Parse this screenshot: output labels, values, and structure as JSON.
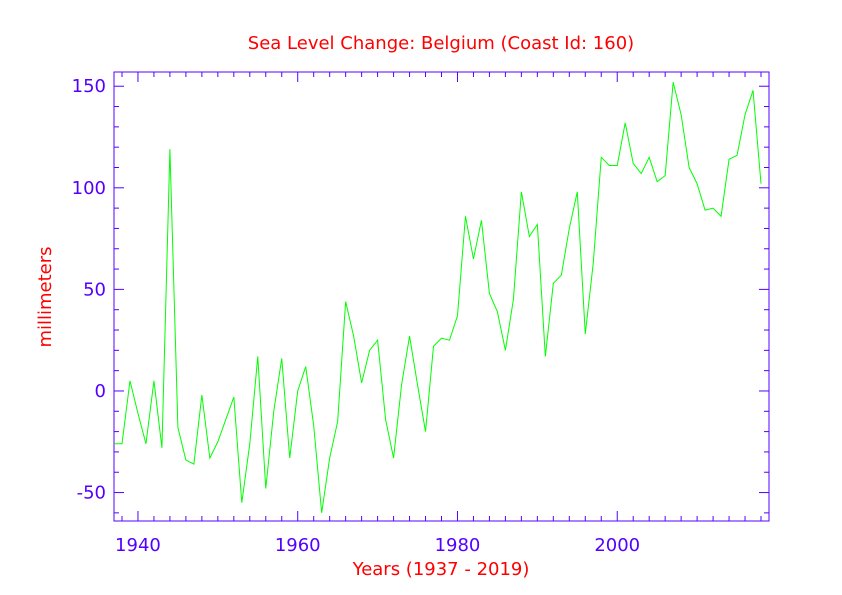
{
  "colors": {
    "title": "#ff0000",
    "axis": "#5500ff",
    "series": "#00ff00",
    "background": "#ffffff"
  },
  "chart_data": {
    "type": "line",
    "title": "Sea Level Change: Belgium (Coast Id: 160)",
    "xlabel": "Years (1937 - 2019)",
    "ylabel": "millimeters",
    "xlim": [
      1937,
      2019
    ],
    "ylim": [
      -64,
      157
    ],
    "x_ticks": [
      1940,
      1960,
      1980,
      2000
    ],
    "x_tick_labels": [
      "1940",
      "1960",
      "1980",
      "2000"
    ],
    "y_ticks": [
      -50,
      0,
      50,
      100,
      150
    ],
    "y_tick_labels": [
      "-50",
      "0",
      "50",
      "100",
      "150"
    ],
    "grid": false,
    "series": [
      {
        "name": "Belgium",
        "x": [
          1937,
          1938,
          1939,
          1940,
          1941,
          1942,
          1943,
          1944,
          1945,
          1946,
          1947,
          1948,
          1949,
          1950,
          1951,
          1952,
          1953,
          1954,
          1955,
          1956,
          1957,
          1958,
          1959,
          1960,
          1961,
          1962,
          1963,
          1964,
          1965,
          1966,
          1967,
          1968,
          1969,
          1970,
          1971,
          1972,
          1973,
          1974,
          1975,
          1976,
          1977,
          1978,
          1979,
          1980,
          1981,
          1982,
          1983,
          1984,
          1985,
          1986,
          1987,
          1988,
          1989,
          1990,
          1991,
          1992,
          1993,
          1994,
          1995,
          1996,
          1997,
          1998,
          1999,
          2000,
          2001,
          2002,
          2003,
          2004,
          2005,
          2006,
          2007,
          2008,
          2009,
          2010,
          2011,
          2012,
          2013,
          2014,
          2015,
          2016,
          2017,
          2018
        ],
        "values": [
          -26,
          -26,
          5,
          -11,
          -26,
          5,
          -28,
          119,
          -18,
          -34,
          -36,
          -2,
          -33,
          -25,
          -14,
          -3,
          -55,
          -26,
          17,
          -48,
          -10,
          16,
          -33,
          0,
          12,
          -17,
          -60,
          -33,
          -15,
          44,
          27,
          4,
          20,
          25,
          -14,
          -33,
          3,
          27,
          3,
          -20,
          22,
          26,
          25,
          37,
          86,
          65,
          84,
          48,
          39,
          20,
          45,
          98,
          76,
          82,
          17,
          53,
          57,
          80,
          98,
          28,
          63,
          115,
          111,
          111,
          132,
          112,
          107,
          115,
          103,
          106,
          152,
          136,
          110,
          102,
          89,
          90,
          86,
          114,
          116,
          136,
          148,
          102
        ]
      }
    ]
  }
}
